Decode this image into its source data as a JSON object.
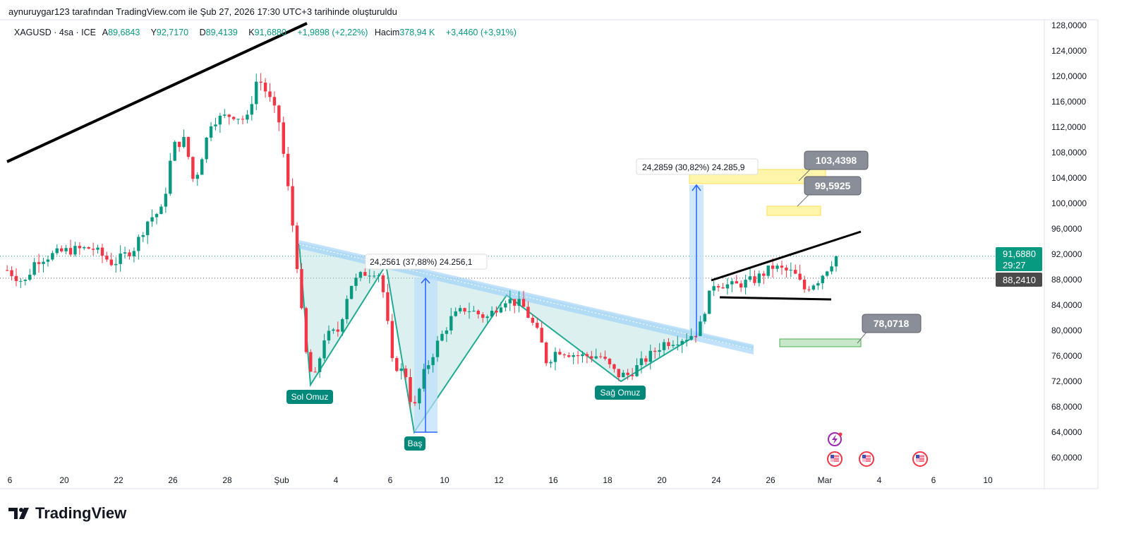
{
  "caption": "aynuruygar123 tarafından TradingView.com ile Şub 27, 2026 17:30 UTC+3 tarihinde oluşturuldu",
  "legend": {
    "symbol": "XAGUSD · 4sa · ICE",
    "open_label": "A",
    "open": "89,6843",
    "high_label": "Y",
    "high": "92,7170",
    "low_label": "D",
    "low": "89,4139",
    "close_label": "K",
    "close": "91,6880",
    "change": "+1,9898 (+2,22%)",
    "volume_label": "Hacim",
    "volume": "378,94 K",
    "volume_change": "+3,4460 (+3,91%)"
  },
  "price_axis": {
    "last_price": "91,6880",
    "countdown": "29:27",
    "marked_price": "88,2410",
    "last_price_color": "#089981",
    "marked_color": "#4a4a4a"
  },
  "annotations": {
    "left_shoulder": "Sol Omuz",
    "head": "Baş",
    "right_shoulder": "Sağ Omuz",
    "measure1": "24,2561 (37,88%) 24.256,1",
    "measure2": "24,2859 (30,82%) 24.285,9",
    "target1": "103,4398",
    "target2": "99,5925",
    "support": "78,0718"
  },
  "logo_text": "TradingView",
  "chart_data": {
    "type": "candlestick",
    "symbol": "XAGUSD",
    "timeframe": "4sa",
    "y_ticks": [
      128,
      124,
      120,
      116,
      112,
      108,
      104,
      100,
      96,
      92,
      88,
      84,
      80,
      76,
      72,
      68,
      64,
      60
    ],
    "y_tick_labels": [
      "128,0000",
      "124,0000",
      "120,0000",
      "116,0000",
      "112,0000",
      "108,0000",
      "104,0000",
      "100,0000",
      "96,0000",
      "92,0000",
      "88,0000",
      "84,0000",
      "80,0000",
      "76,0000",
      "72,0000",
      "68,0000",
      "64,0000",
      "60,0000"
    ],
    "ylim": [
      60,
      128
    ],
    "x_tick_labels": [
      "6",
      "20",
      "22",
      "26",
      "28",
      "Şub",
      "4",
      "6",
      "10",
      "12",
      "16",
      "18",
      "20",
      "24",
      "26",
      "Mar",
      "4",
      "6",
      "10"
    ],
    "price_path": [
      [
        -0.05,
        89.5
      ],
      [
        0.27,
        87.5
      ],
      [
        0.47,
        91
      ],
      [
        0.99,
        92.5
      ],
      [
        1.51,
        93
      ],
      [
        1.9,
        90.5
      ],
      [
        2.29,
        93
      ],
      [
        2.55,
        97.5
      ],
      [
        2.81,
        99
      ],
      [
        3.0,
        109
      ],
      [
        3.22,
        110
      ],
      [
        3.39,
        103
      ],
      [
        3.71,
        113
      ],
      [
        4.1,
        114
      ],
      [
        4.36,
        113
      ],
      [
        4.56,
        120
      ],
      [
        4.75,
        117
      ],
      [
        4.95,
        113
      ],
      [
        5.08,
        105
      ],
      [
        5.27,
        92
      ],
      [
        5.34,
        85
      ],
      [
        5.47,
        75
      ],
      [
        5.6,
        72
      ],
      [
        5.79,
        79
      ],
      [
        6.05,
        80
      ],
      [
        6.25,
        87
      ],
      [
        6.51,
        89
      ],
      [
        6.77,
        89.5
      ],
      [
        6.9,
        85
      ],
      [
        7.03,
        75
      ],
      [
        7.29,
        73
      ],
      [
        7.42,
        67
      ],
      [
        7.61,
        73
      ],
      [
        7.87,
        78
      ],
      [
        8.13,
        82
      ],
      [
        8.39,
        83.5
      ],
      [
        8.78,
        82
      ],
      [
        9.1,
        85
      ],
      [
        9.43,
        84
      ],
      [
        9.75,
        79
      ],
      [
        9.88,
        75
      ],
      [
        10.08,
        77
      ],
      [
        10.47,
        76
      ],
      [
        10.86,
        76
      ],
      [
        11.18,
        73
      ],
      [
        11.38,
        73
      ],
      [
        11.64,
        75
      ],
      [
        12.03,
        78
      ],
      [
        12.48,
        79
      ],
      [
        12.68,
        80
      ],
      [
        12.81,
        84
      ],
      [
        12.96,
        87.5
      ],
      [
        13.32,
        87
      ],
      [
        13.71,
        88
      ],
      [
        14.04,
        90
      ],
      [
        14.43,
        89
      ],
      [
        14.62,
        86.5
      ],
      [
        14.88,
        88
      ],
      [
        15.21,
        91.688
      ]
    ],
    "last_price": 91.688,
    "horizontal_lines": [
      91.688,
      88.241
    ]
  }
}
